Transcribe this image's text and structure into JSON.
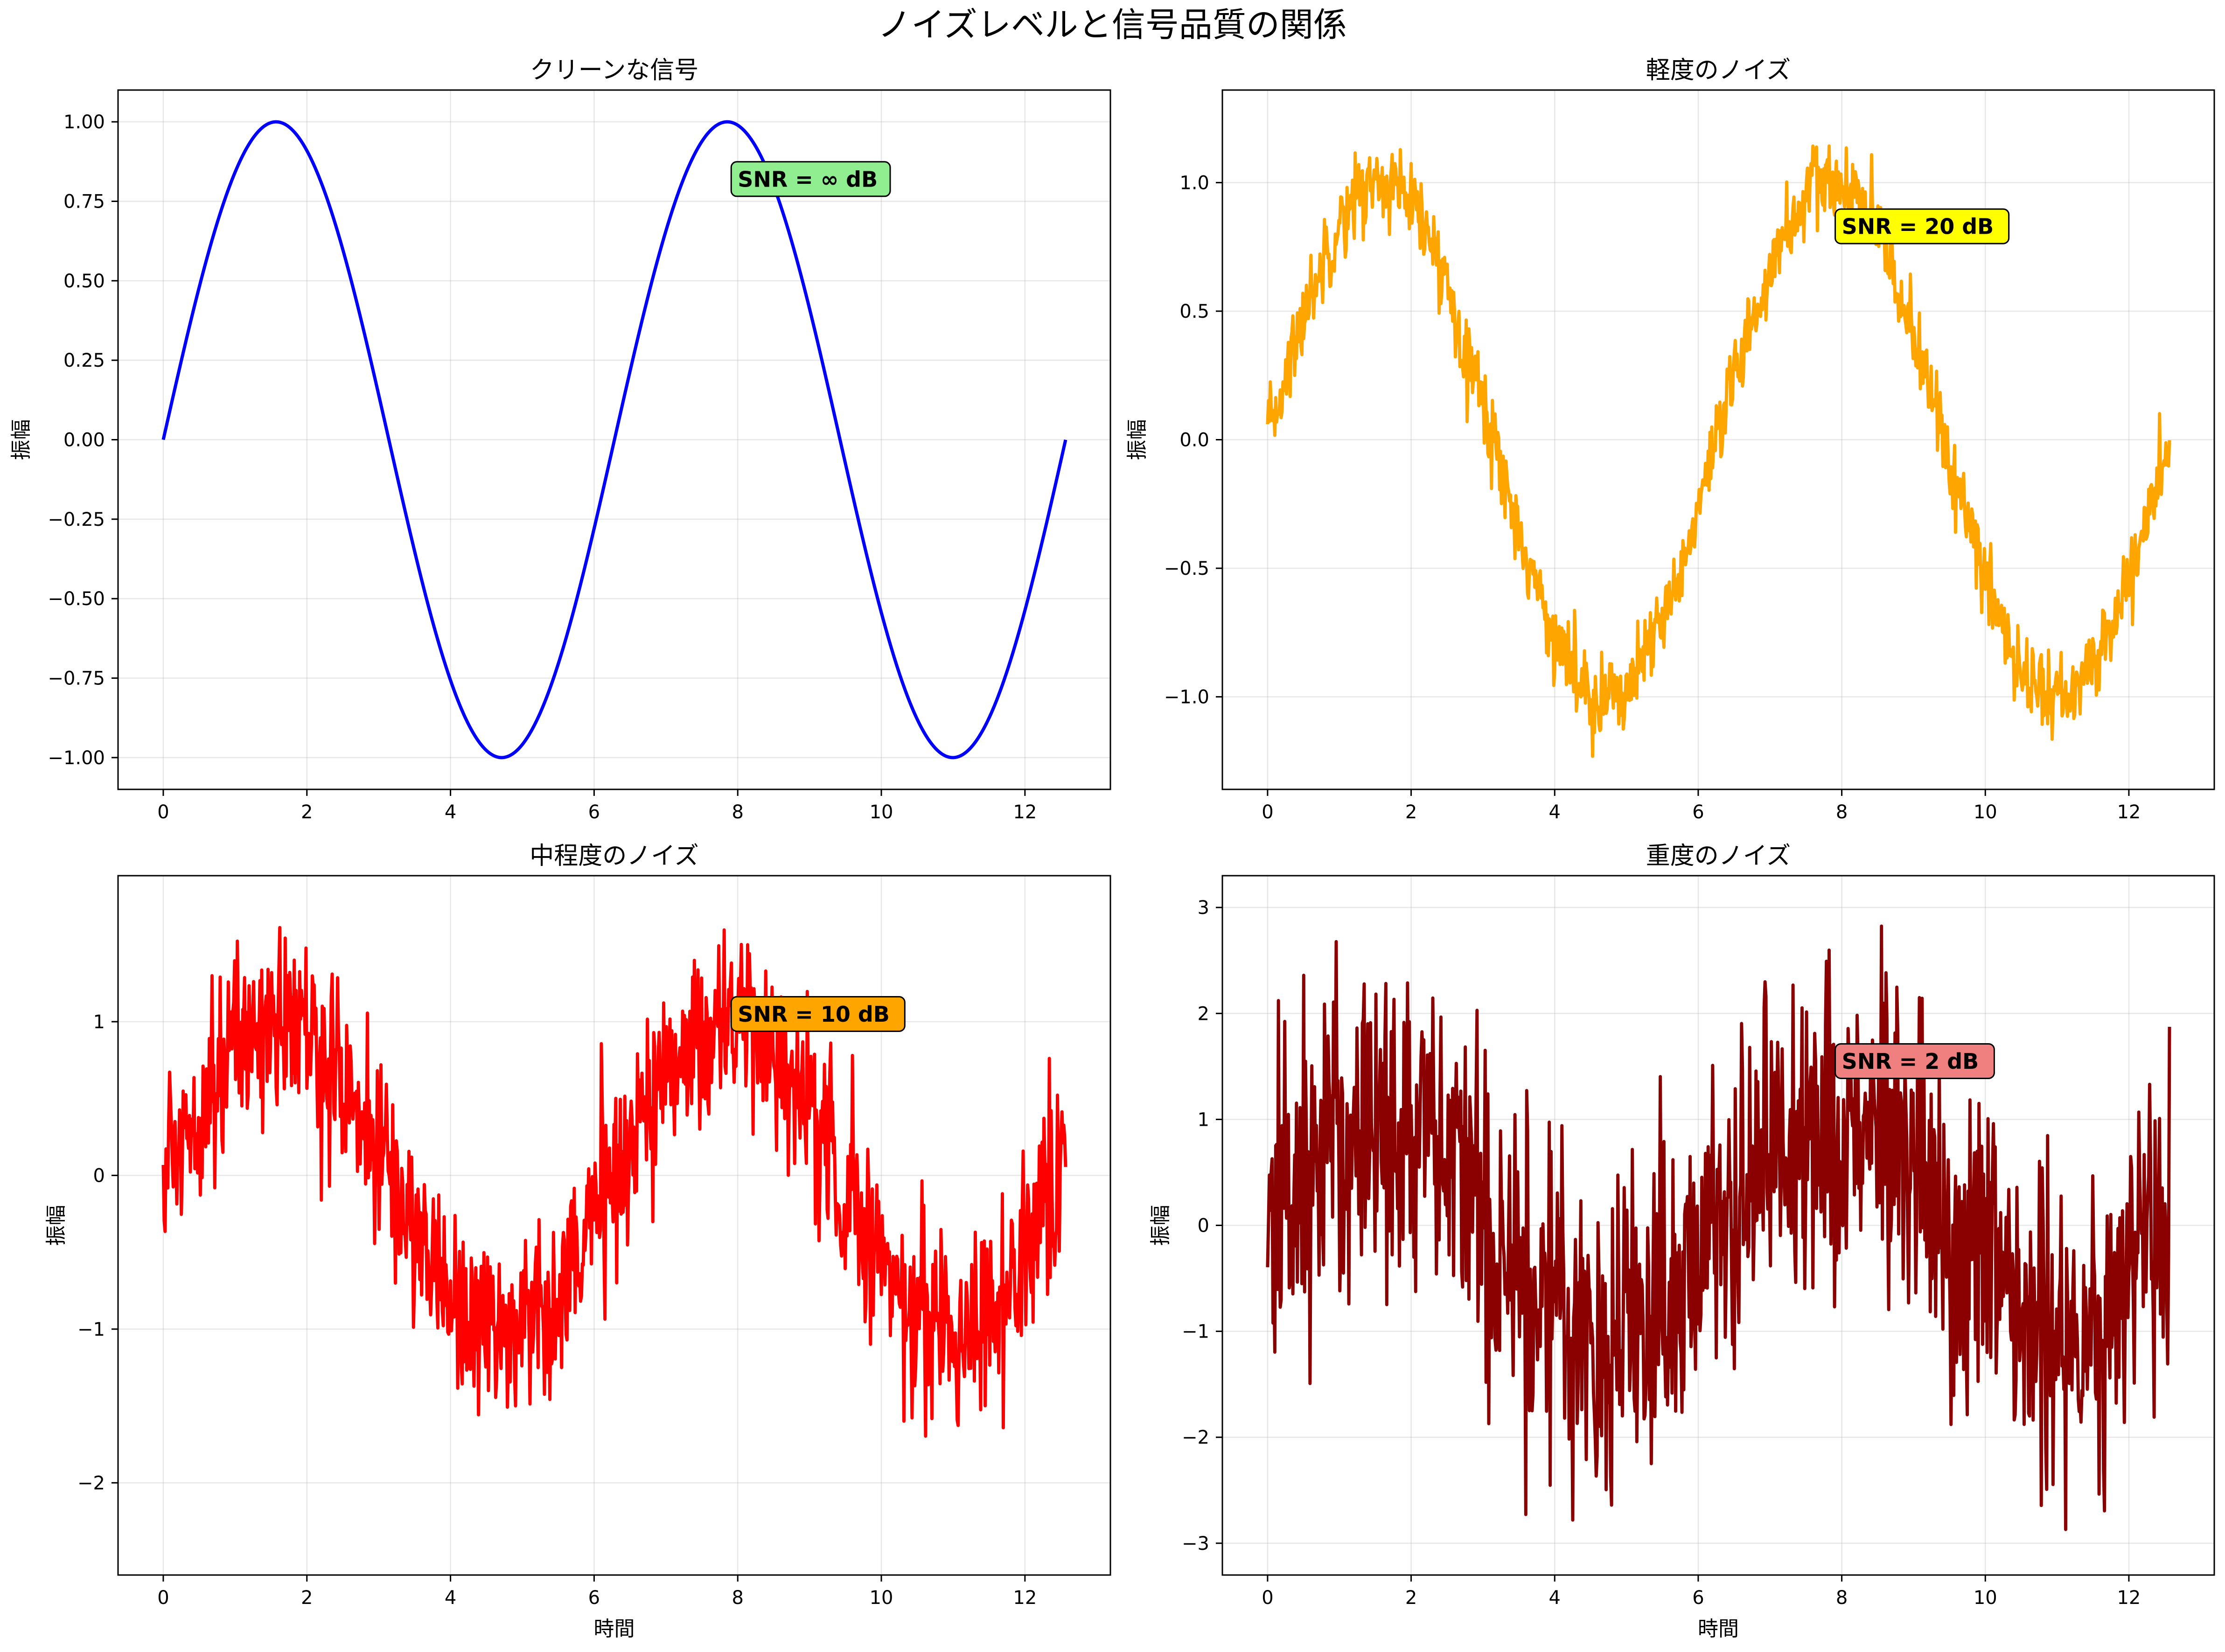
{
  "figure": {
    "suptitle": "ノイズレベルと信号品質の関係"
  },
  "chart_data": [
    {
      "type": "line",
      "title": "クリーンな信号",
      "xlabel": "",
      "ylabel": "振幅",
      "xlim": [
        -0.63,
        13.19
      ],
      "ylim": [
        -1.1,
        1.1
      ],
      "xticks": [
        0,
        2,
        4,
        6,
        8,
        10,
        12
      ],
      "xtick_labels": [
        "0",
        "2",
        "4",
        "6",
        "8",
        "10",
        "12"
      ],
      "yticks": [
        -1.0,
        -0.75,
        -0.5,
        -0.25,
        0.0,
        0.25,
        0.5,
        0.75,
        1.0
      ],
      "ytick_labels": [
        "−1.00",
        "−0.75",
        "−0.50",
        "−0.25",
        "0.00",
        "0.25",
        "0.50",
        "0.75",
        "1.00"
      ],
      "grid": true,
      "series": [
        {
          "color": "#0000ff",
          "x_range": [
            0,
            12.566
          ],
          "points": 1000,
          "function": "sin(x)",
          "noise_amplitude": 0
        }
      ],
      "annotation": {
        "text": "SNR = ∞ dB",
        "x": 8.0,
        "y": 0.82,
        "bg": "#90ee90"
      }
    },
    {
      "type": "line",
      "title": "軽度のノイズ",
      "xlabel": "",
      "ylabel": "振幅",
      "xlim": [
        -0.63,
        13.19
      ],
      "ylim": [
        -1.36,
        1.36
      ],
      "xticks": [
        0,
        2,
        4,
        6,
        8,
        10,
        12
      ],
      "xtick_labels": [
        "0",
        "2",
        "4",
        "6",
        "8",
        "10",
        "12"
      ],
      "yticks": [
        -1.0,
        -0.5,
        0.0,
        0.5,
        1.0
      ],
      "ytick_labels": [
        "−1.0",
        "−0.5",
        "0.0",
        "0.5",
        "1.0"
      ],
      "grid": true,
      "series": [
        {
          "color": "#ffa500",
          "x_range": [
            0,
            12.566
          ],
          "points": 1000,
          "function": "sin(x) + noise",
          "noise_amplitude": 0.08
        }
      ],
      "annotation": {
        "text": "SNR = 20 dB",
        "x": 8.0,
        "y": 0.83,
        "bg": "#ffff00"
      }
    },
    {
      "type": "line",
      "title": "中程度のノイズ",
      "xlabel": "時間",
      "ylabel": "振幅",
      "xlim": [
        -0.63,
        13.19
      ],
      "ylim": [
        -2.6,
        1.95
      ],
      "xticks": [
        0,
        2,
        4,
        6,
        8,
        10,
        12
      ],
      "xtick_labels": [
        "0",
        "2",
        "4",
        "6",
        "8",
        "10",
        "12"
      ],
      "yticks": [
        -2,
        -1,
        0,
        1
      ],
      "ytick_labels": [
        "−2",
        "−1",
        "0",
        "1"
      ],
      "grid": true,
      "series": [
        {
          "color": "#ff0000",
          "x_range": [
            0,
            12.566
          ],
          "points": 1000,
          "function": "sin(x) + noise",
          "noise_amplitude": 0.3
        }
      ],
      "annotation": {
        "text": "SNR = 10 dB",
        "x": 8.0,
        "y": 1.05,
        "bg": "#ffa500"
      }
    },
    {
      "type": "line",
      "title": "重度のノイズ",
      "xlabel": "時間",
      "ylabel": "振幅",
      "xlim": [
        -0.63,
        13.19
      ],
      "ylim": [
        -3.3,
        3.3
      ],
      "xticks": [
        0,
        2,
        4,
        6,
        8,
        10,
        12
      ],
      "xtick_labels": [
        "0",
        "2",
        "4",
        "6",
        "8",
        "10",
        "12"
      ],
      "yticks": [
        -3,
        -2,
        -1,
        0,
        1,
        2,
        3
      ],
      "ytick_labels": [
        "−3",
        "−2",
        "−1",
        "0",
        "1",
        "2",
        "3"
      ],
      "grid": true,
      "series": [
        {
          "color": "#8b0000",
          "x_range": [
            0,
            12.566
          ],
          "points": 1000,
          "function": "sin(x) + noise",
          "noise_amplitude": 0.8
        }
      ],
      "annotation": {
        "text": "SNR = 2 dB",
        "x": 8.0,
        "y": 1.55,
        "bg": "#f08080"
      }
    }
  ]
}
